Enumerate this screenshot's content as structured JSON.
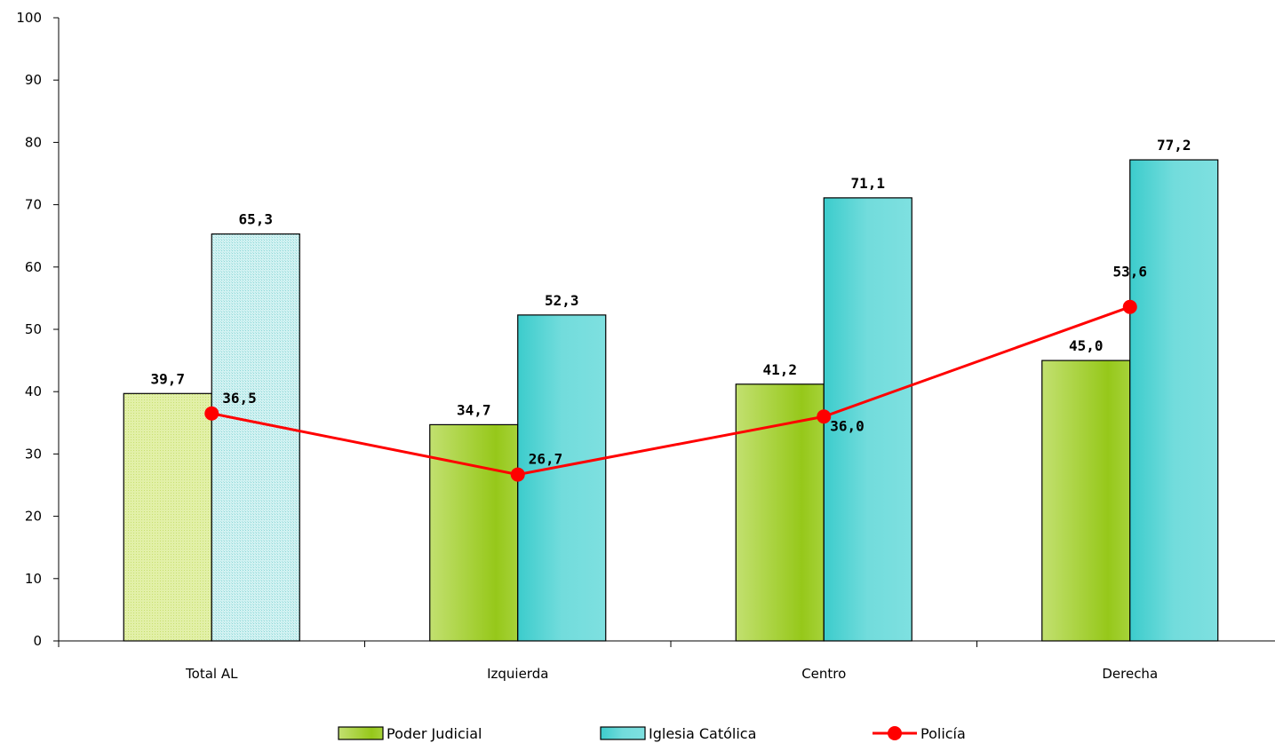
{
  "chart_data": {
    "type": "bar",
    "title": "",
    "xlabel": "",
    "ylabel": "",
    "ylim": [
      0,
      100
    ],
    "yticks": [
      0,
      10,
      20,
      30,
      40,
      50,
      60,
      70,
      80,
      90,
      100
    ],
    "categories": [
      "Total AL",
      "Izquierda",
      "Centro",
      "Derecha"
    ],
    "series": [
      {
        "name": "Poder Judicial",
        "kind": "bar",
        "values": [
          39.7,
          34.7,
          41.2,
          45.0
        ],
        "labels": [
          "39,7",
          "34,7",
          "41,2",
          "45,0"
        ],
        "color": "#9acd32"
      },
      {
        "name": "Iglesia Católica",
        "kind": "bar",
        "values": [
          65.3,
          52.3,
          71.1,
          77.2
        ],
        "labels": [
          "65,3",
          "52,3",
          "71,1",
          "77,2"
        ],
        "color": "#40d0d0"
      },
      {
        "name": "Policía",
        "kind": "line",
        "values": [
          36.5,
          26.7,
          36.0,
          53.6
        ],
        "labels": [
          "36,5",
          "26,7",
          "36,0",
          "53,6"
        ],
        "color": "#ff0000"
      }
    ],
    "legend_position": "bottom",
    "grid": false
  }
}
